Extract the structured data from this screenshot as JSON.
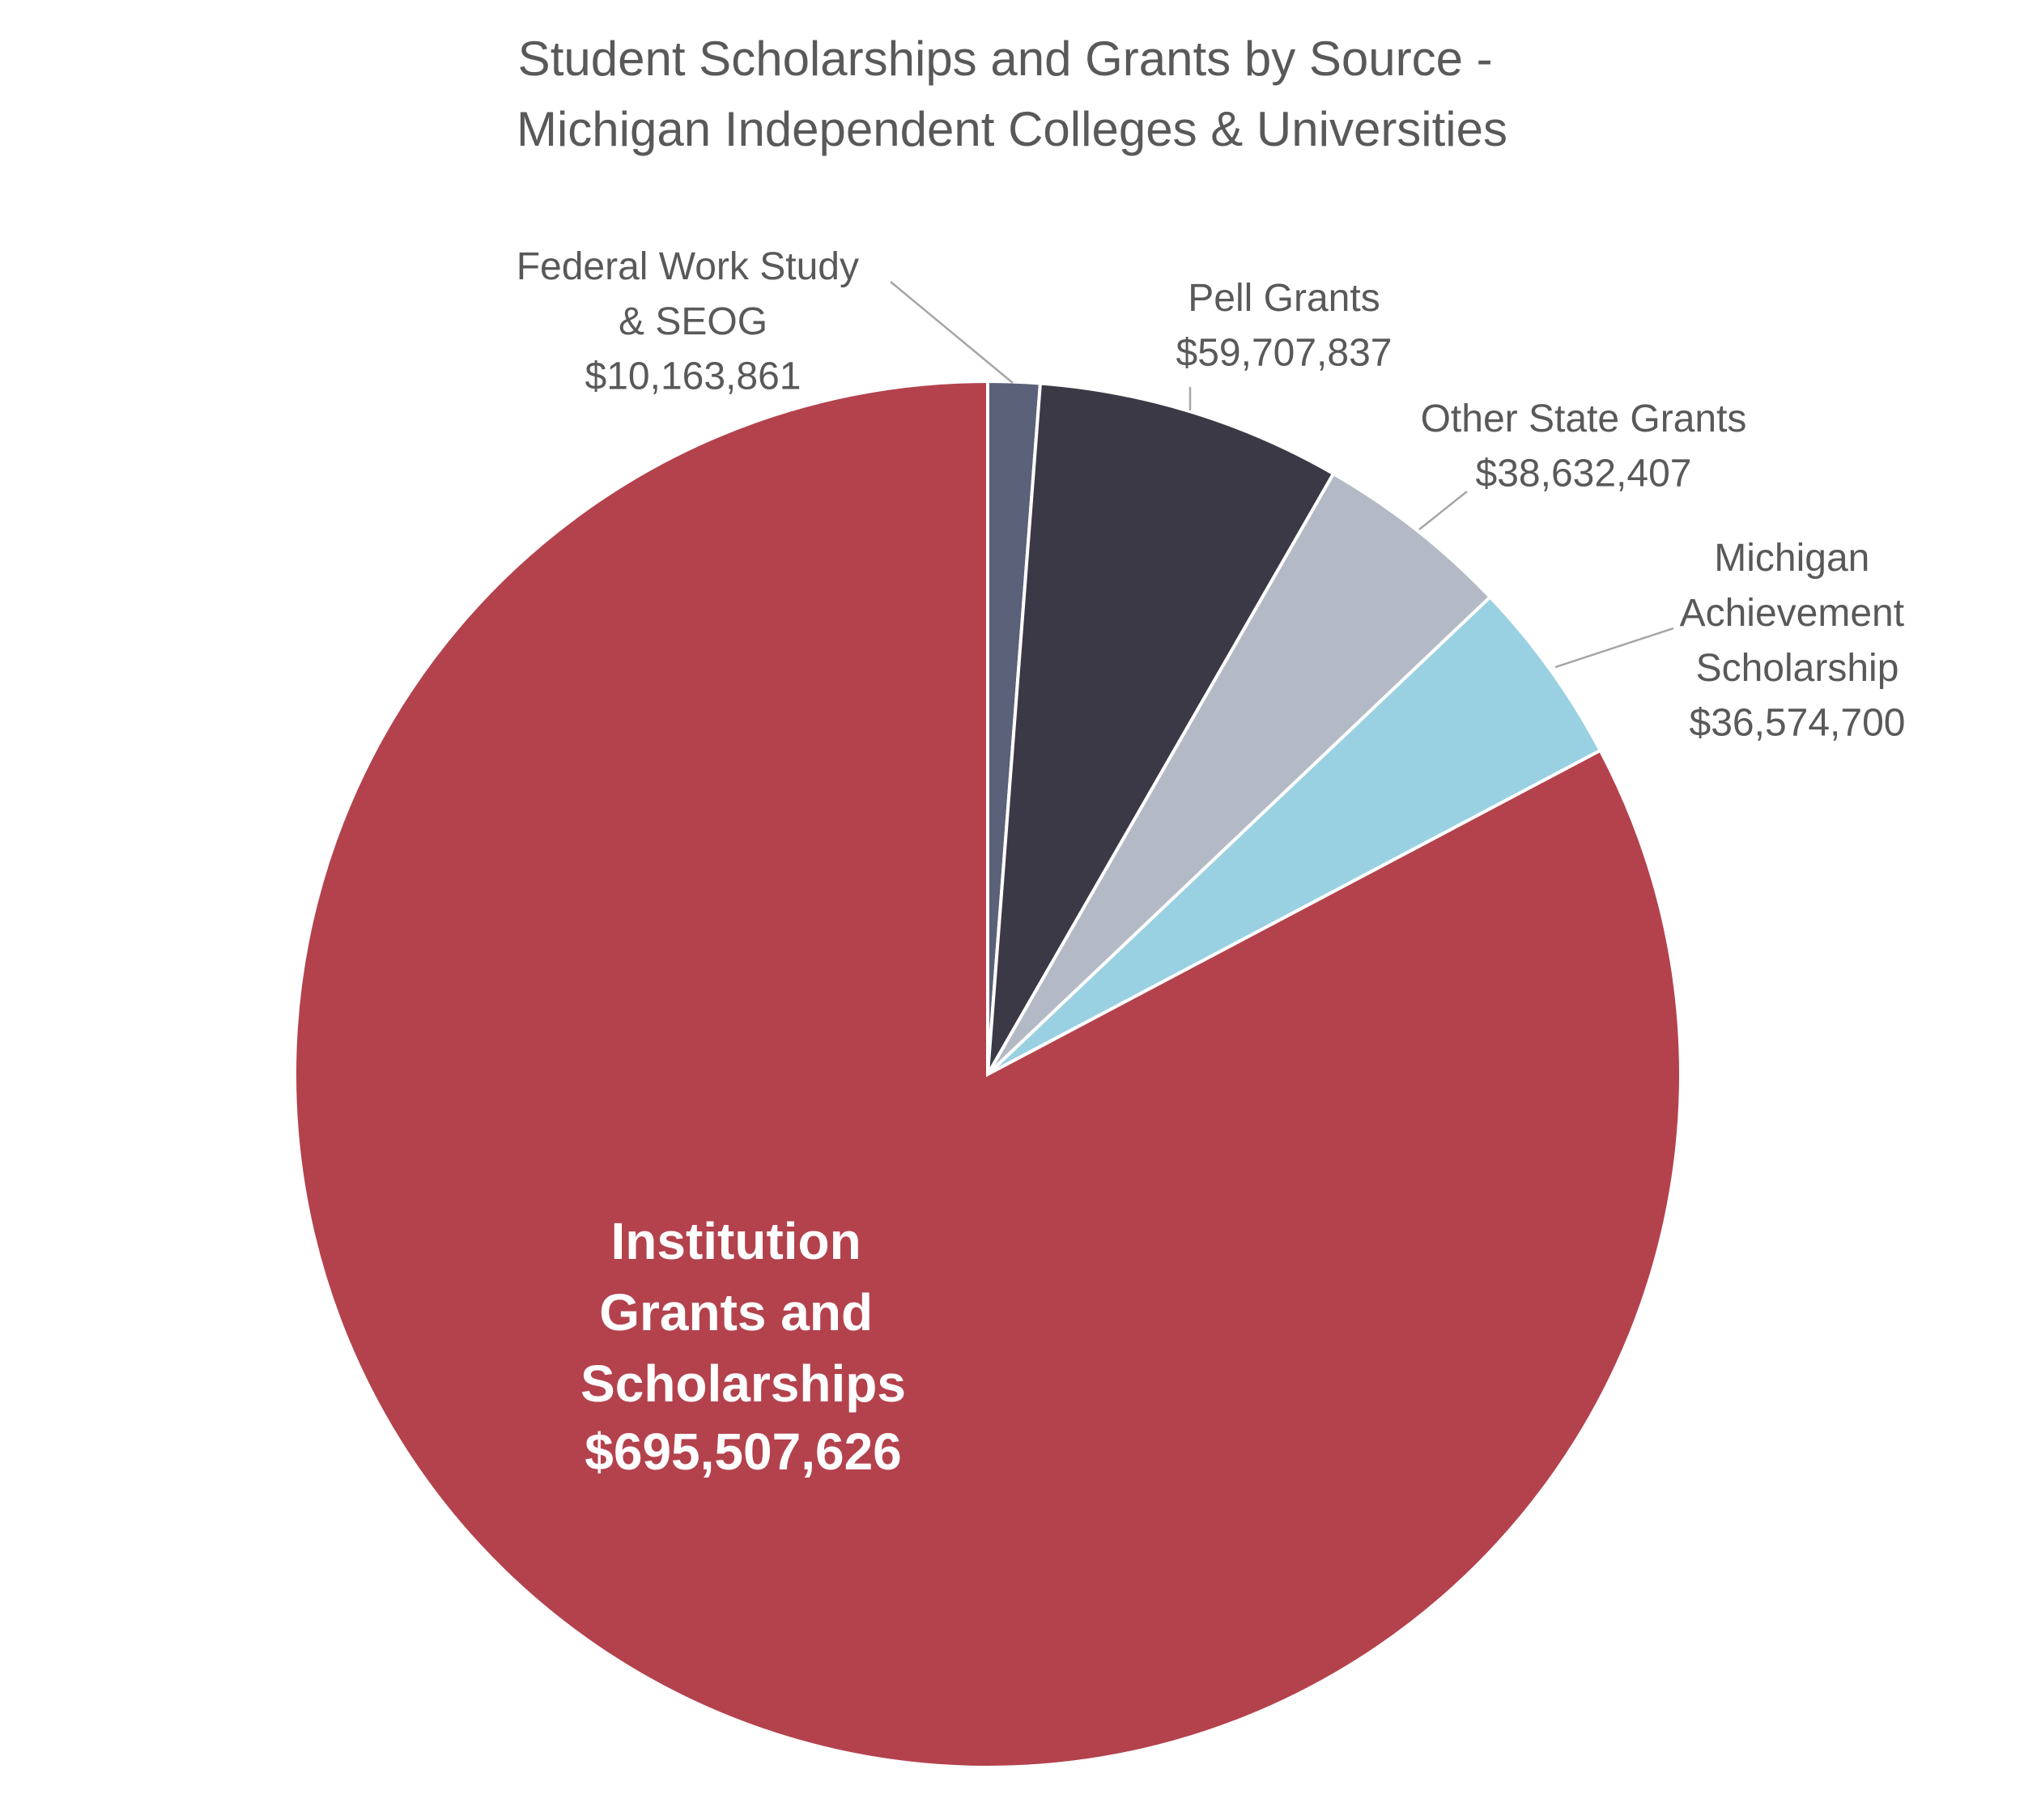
{
  "chart_data": {
    "type": "pie",
    "title": "Student Scholarships and Grants by Source - Michigan Independent Colleges & Universities",
    "categories": [
      "Federal Work Study & SEOG",
      "Pell Grants",
      "Other State Grants",
      "Michigan Achievement Scholarship",
      "Institution Grants and Scholarships"
    ],
    "values": [
      10163861,
      59707837,
      38632407,
      36574700,
      695507626
    ],
    "value_labels": [
      "$10,163,861",
      "$59,707,837",
      "$38,632,407",
      "$36,574,700",
      "$695,507,626"
    ],
    "colors": [
      "#5a6178",
      "#3c3947",
      "#b4bac5",
      "#9ad1e2",
      "#b3424d"
    ]
  }
}
